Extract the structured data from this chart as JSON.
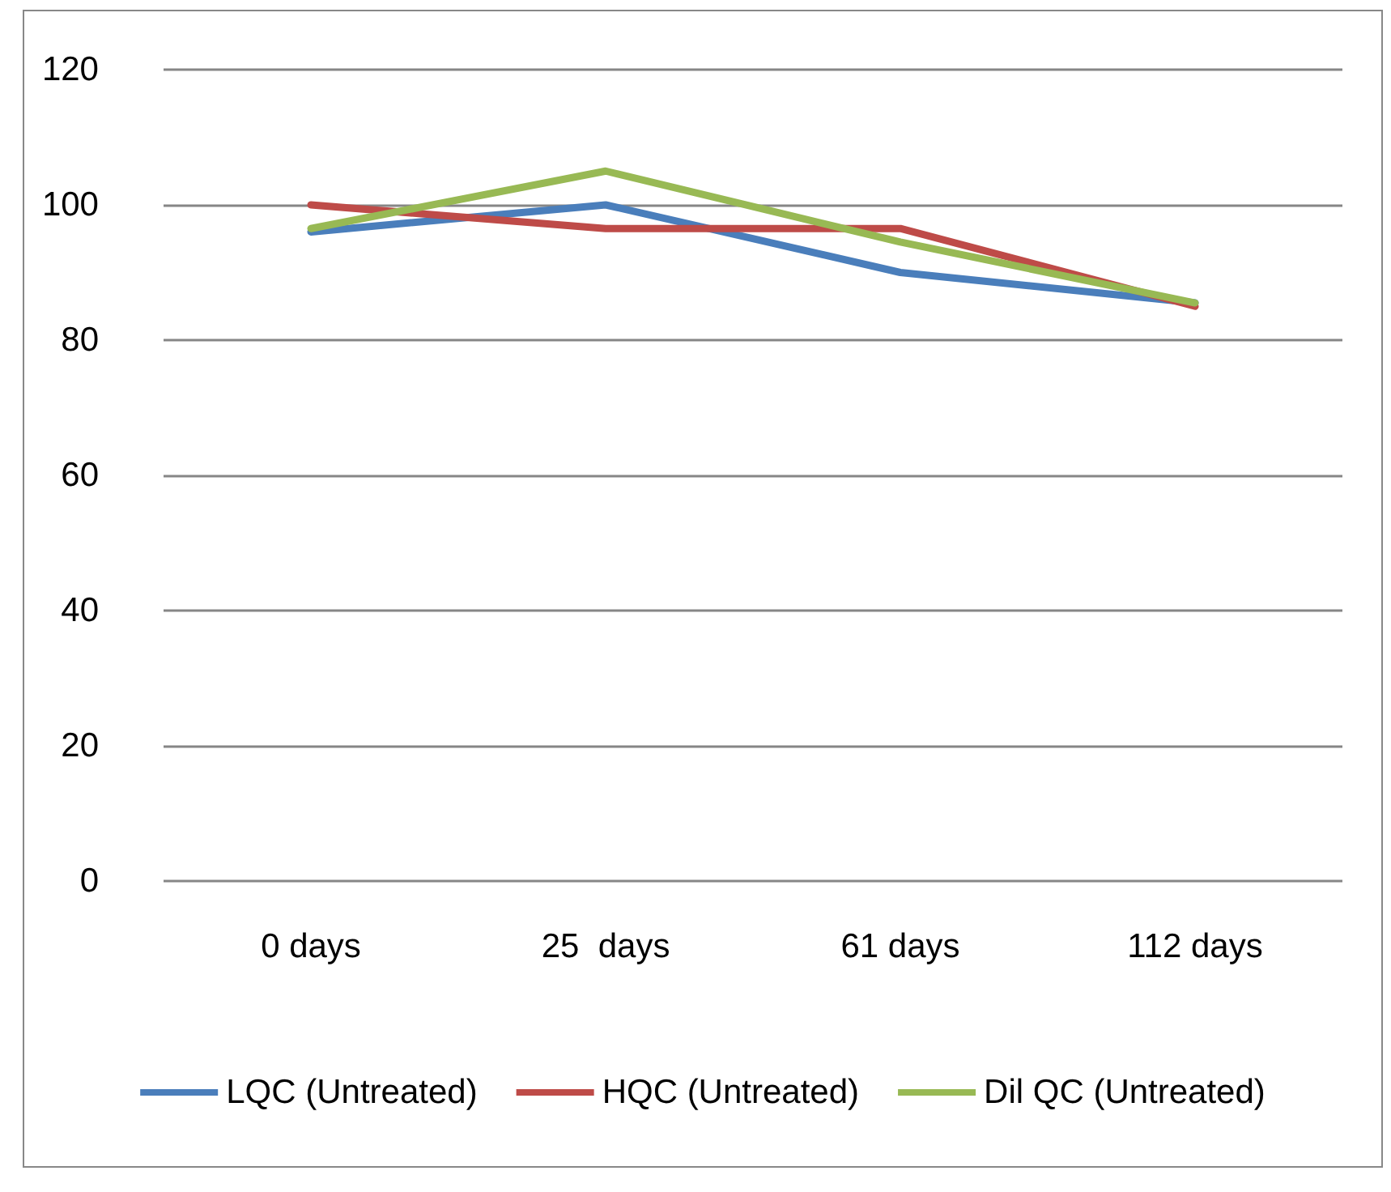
{
  "chart_data": {
    "type": "line",
    "categories": [
      "0 days",
      "25  days",
      "61 days",
      "112 days"
    ],
    "series": [
      {
        "name": "LQC (Untreated)",
        "color": "#4a7ebb",
        "values": [
          96,
          100,
          90,
          85.5
        ]
      },
      {
        "name": "HQC (Untreated)",
        "color": "#be4b48",
        "values": [
          100,
          96.5,
          96.5,
          85
        ]
      },
      {
        "name": "Dil QC (Untreated)",
        "color": "#98b954",
        "values": [
          96.5,
          105,
          94.5,
          85.5
        ]
      }
    ],
    "ylim": [
      0,
      120
    ],
    "yticks": [
      0,
      20,
      40,
      60,
      80,
      100,
      120
    ],
    "grid": "y",
    "legend": "bottom",
    "marker": "none",
    "line_style": "solid"
  }
}
